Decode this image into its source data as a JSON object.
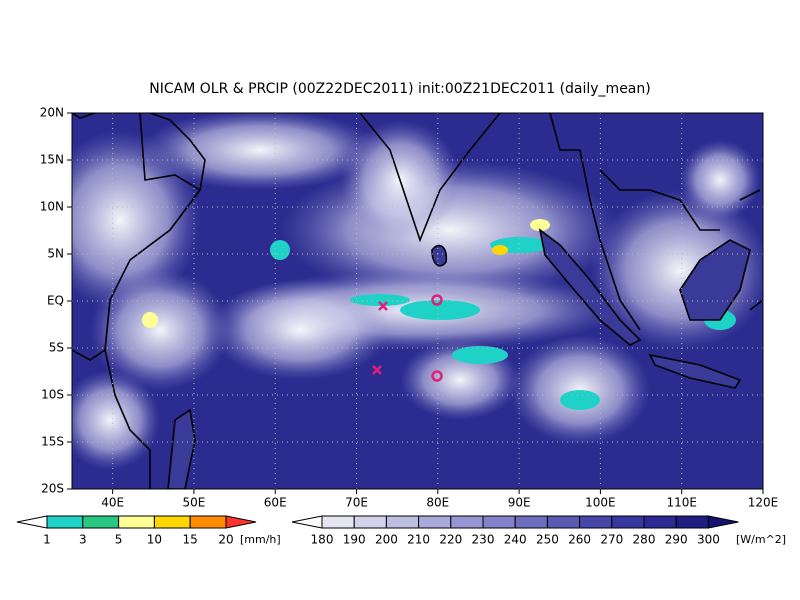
{
  "title": "NICAM OLR & PRCIP (00Z22DEC2011) init:00Z21DEC2011 (daily_mean)",
  "map": {
    "lonlim": [
      35,
      120
    ],
    "latlim": [
      -20,
      20
    ],
    "lon_ticks": [
      {
        "value": 40,
        "label": "40E"
      },
      {
        "value": 50,
        "label": "50E"
      },
      {
        "value": 60,
        "label": "60E"
      },
      {
        "value": 70,
        "label": "70E"
      },
      {
        "value": 80,
        "label": "80E"
      },
      {
        "value": 90,
        "label": "90E"
      },
      {
        "value": 100,
        "label": "100E"
      },
      {
        "value": 110,
        "label": "110E"
      },
      {
        "value": 120,
        "label": "120E"
      }
    ],
    "lat_ticks": [
      {
        "value": 20,
        "label": "20N"
      },
      {
        "value": 15,
        "label": "15N"
      },
      {
        "value": 10,
        "label": "10N"
      },
      {
        "value": 5,
        "label": "5N"
      },
      {
        "value": 0,
        "label": "EQ"
      },
      {
        "value": -5,
        "label": "5S"
      },
      {
        "value": -10,
        "label": "10S"
      },
      {
        "value": -15,
        "label": "15S"
      },
      {
        "value": -20,
        "label": "20S"
      }
    ]
  },
  "precip_colorbar": {
    "levels": [
      1,
      3,
      5,
      10,
      15,
      20
    ],
    "unit": "[mm/h]",
    "colors": [
      "#ffffff",
      "#1ed2c8",
      "#28c882",
      "#ffff96",
      "#ffd700",
      "#ff8c00",
      "#ff3232"
    ]
  },
  "olr_colorbar": {
    "levels": [
      180,
      190,
      200,
      210,
      220,
      230,
      240,
      250,
      260,
      270,
      280,
      290,
      300
    ],
    "unit": "[W/m^2]",
    "colors": [
      "#ffffff",
      "#e6e6f2",
      "#d2d2ea",
      "#bebee2",
      "#aaaada",
      "#9696d2",
      "#8282c8",
      "#6e6ebe",
      "#5a5ab4",
      "#4646aa",
      "#3737a0",
      "#2a2a92",
      "#1e1e82",
      "#141470"
    ]
  }
}
